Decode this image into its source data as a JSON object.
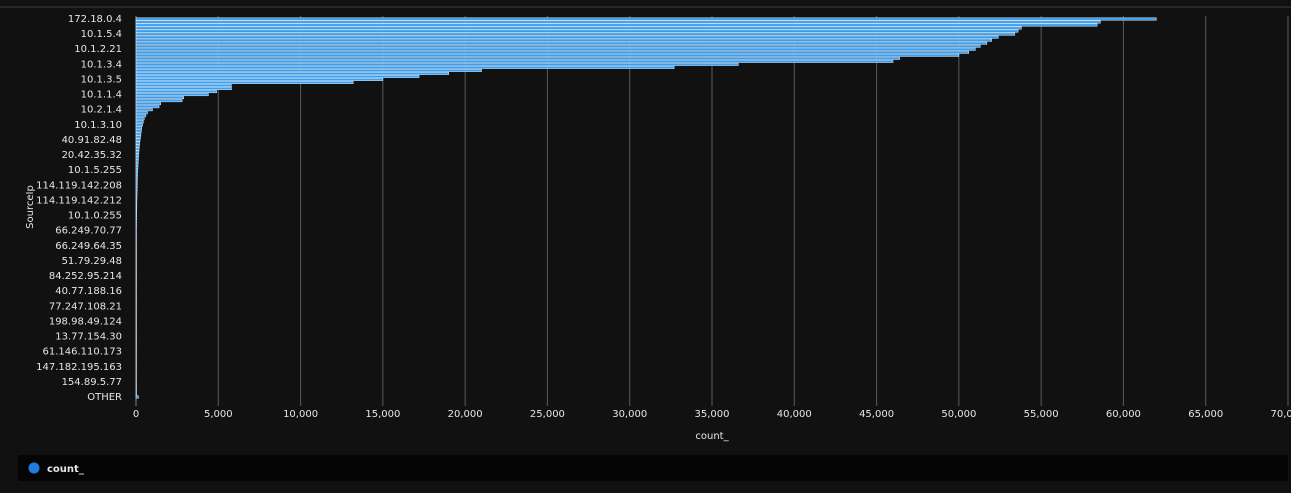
{
  "chart_data": {
    "type": "hbar",
    "xlabel": "count_",
    "ylabel": "SourceIp",
    "categories": [
      "172.18.0.4",
      null,
      null,
      null,
      null,
      "10.1.5.4",
      null,
      null,
      null,
      null,
      "10.1.2.21",
      null,
      null,
      null,
      null,
      "10.1.3.4",
      null,
      null,
      null,
      null,
      "10.1.3.5",
      null,
      null,
      null,
      null,
      "10.1.1.4",
      null,
      null,
      null,
      null,
      "10.2.1.4",
      null,
      null,
      null,
      null,
      "10.1.3.10",
      null,
      null,
      null,
      null,
      "40.91.82.48",
      null,
      null,
      null,
      null,
      "20.42.35.32",
      null,
      null,
      null,
      null,
      "10.1.5.255",
      null,
      null,
      null,
      null,
      "114.119.142.208",
      null,
      null,
      null,
      null,
      "114.119.142.212",
      null,
      null,
      null,
      null,
      "10.1.0.255",
      null,
      null,
      null,
      null,
      "66.249.70.77",
      null,
      null,
      null,
      null,
      "66.249.64.35",
      null,
      null,
      null,
      null,
      "51.79.29.48",
      null,
      null,
      null,
      null,
      "84.252.95.214",
      null,
      null,
      null,
      null,
      "40.77.188.16",
      null,
      null,
      null,
      null,
      "77.247.108.21",
      null,
      null,
      null,
      null,
      "198.98.49.124",
      null,
      null,
      null,
      null,
      "13.77.154.30",
      null,
      null,
      null,
      null,
      "61.146.110.173",
      null,
      null,
      null,
      null,
      "147.182.195.163",
      null,
      null,
      null,
      null,
      "154.89.5.77",
      null,
      null,
      null,
      null,
      "OTHER"
    ],
    "series": [
      {
        "name": "count_",
        "color": "#3a9ff0",
        "values": [
          62000,
          58600,
          58400,
          53800,
          53600,
          53400,
          52400,
          52000,
          51700,
          51300,
          51000,
          50600,
          50000,
          46400,
          46000,
          36600,
          32700,
          21000,
          19000,
          17200,
          15000,
          13200,
          5800,
          5800,
          4900,
          4400,
          2900,
          2800,
          1500,
          1400,
          1000,
          700,
          600,
          500,
          450,
          400,
          350,
          330,
          300,
          280,
          250,
          230,
          210,
          190,
          175,
          160,
          150,
          140,
          130,
          120,
          110,
          100,
          95,
          90,
          85,
          80,
          75,
          70,
          65,
          60,
          55,
          50,
          48,
          46,
          44,
          42,
          40,
          38,
          36,
          34,
          32,
          30,
          28,
          26,
          24,
          22,
          20,
          19,
          18,
          17,
          16,
          15,
          14,
          13,
          12,
          11,
          10,
          10,
          9,
          9,
          8,
          8,
          7,
          7,
          6,
          6,
          6,
          5,
          5,
          5,
          4,
          4,
          4,
          4,
          3,
          3,
          3,
          3,
          3,
          2,
          2,
          2,
          2,
          2,
          2,
          2,
          2,
          1,
          1,
          1,
          1,
          1,
          1,
          1,
          1,
          150
        ]
      }
    ],
    "xlim": [
      0,
      70000
    ],
    "xticks": [
      0,
      {
        "value": 5000,
        "label": "5,000"
      },
      {
        "value": 10000,
        "label": "10,000"
      },
      {
        "value": 15000,
        "label": "15,000"
      },
      {
        "value": 20000,
        "label": "20,000"
      },
      {
        "value": 25000,
        "label": "25,000"
      },
      {
        "value": 30000,
        "label": "30,000"
      },
      {
        "value": 35000,
        "label": "35,000"
      },
      {
        "value": 40000,
        "label": "40,000"
      },
      {
        "value": 45000,
        "label": "45,000"
      },
      {
        "value": 50000,
        "label": "50,000"
      },
      {
        "value": 55000,
        "label": "55,000"
      },
      {
        "value": 60000,
        "label": "60,000"
      },
      {
        "value": 65000,
        "label": "65,000"
      },
      {
        "value": 70000,
        "label": "70,000"
      }
    ],
    "grid": true
  }
}
